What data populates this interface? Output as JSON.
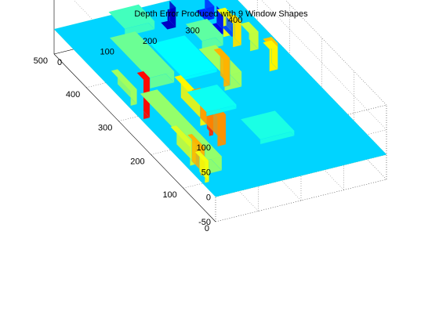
{
  "chart_data": {
    "type": "surface",
    "title": "Depth Error Produced with 9 Window Shapes",
    "xlabel": "",
    "ylabel": "",
    "zlabel": "",
    "colormap": "jet",
    "grid": true,
    "x_ticks": [
      0,
      100,
      200,
      300,
      400,
      500
    ],
    "y_ticks": [
      0,
      100,
      200,
      300,
      400
    ],
    "z_ticks": [
      -50,
      0,
      50,
      100
    ],
    "xlim": [
      0,
      500
    ],
    "ylim": [
      0,
      400
    ],
    "zlim": [
      -50,
      100
    ],
    "base_level": 0,
    "features": [
      {
        "x": [
          40,
          70
        ],
        "y": [
          5,
          15
        ],
        "z": 42
      },
      {
        "x": [
          60,
          100
        ],
        "y": [
          10,
          20
        ],
        "z": 55
      },
      {
        "x": [
          90,
          150
        ],
        "y": [
          8,
          22
        ],
        "z": 38
      },
      {
        "x": [
          60,
          260
        ],
        "y": [
          20,
          60
        ],
        "z": 28
      },
      {
        "x": [
          270,
          330
        ],
        "y": [
          5,
          20
        ],
        "z": 30
      },
      {
        "x": [
          120,
          200
        ],
        "y": [
          95,
          115
        ],
        "z": 60
      },
      {
        "x": [
          150,
          170
        ],
        "y": [
          98,
          108
        ],
        "z": 75
      },
      {
        "x": [
          180,
          260
        ],
        "y": [
          100,
          115
        ],
        "z": 45
      },
      {
        "x": [
          230,
          250
        ],
        "y": [
          5,
          20
        ],
        "z": 80
      },
      {
        "x": [
          300,
          420
        ],
        "y": [
          70,
          130
        ],
        "z": 22
      },
      {
        "x": [
          250,
          330
        ],
        "y": [
          210,
          250
        ],
        "z": 30
      },
      {
        "x": [
          260,
          290
        ],
        "y": [
          215,
          230
        ],
        "z": 55
      },
      {
        "x": [
          360,
          410
        ],
        "y": [
          240,
          290
        ],
        "z": 20
      },
      {
        "x": [
          270,
          290
        ],
        "y": [
          330,
          350
        ],
        "z": 45
      },
      {
        "x": [
          270,
          290
        ],
        "y": [
          330,
          350
        ],
        "z": 52
      },
      {
        "x": [
          330,
          360
        ],
        "y": [
          330,
          350
        ],
        "z": 35
      },
      {
        "x": [
          350,
          370
        ],
        "y": [
          305,
          325
        ],
        "z": 48
      },
      {
        "x": [
          380,
          400
        ],
        "y": [
          305,
          325
        ],
        "z": 42
      },
      {
        "x": [
          440,
          490
        ],
        "y": [
          120,
          190
        ],
        "z": 16
      },
      {
        "x": [
          400,
          430
        ],
        "y": [
          340,
          350
        ],
        "z": -20
      },
      {
        "x": [
          430,
          460
        ],
        "y": [
          340,
          350
        ],
        "z": -35
      },
      {
        "x": [
          460,
          490
        ],
        "y": [
          325,
          345
        ],
        "z": -25
      },
      {
        "x": [
          480,
          500
        ],
        "y": [
          250,
          270
        ],
        "z": -40
      },
      {
        "x": [
          200,
          260
        ],
        "y": [
          130,
          200
        ],
        "z": 8
      },
      {
        "x": [
          300,
          400
        ],
        "y": [
          150,
          230
        ],
        "z": 6
      },
      {
        "x": [
          100,
          160
        ],
        "y": [
          180,
          260
        ],
        "z": 10
      }
    ]
  }
}
